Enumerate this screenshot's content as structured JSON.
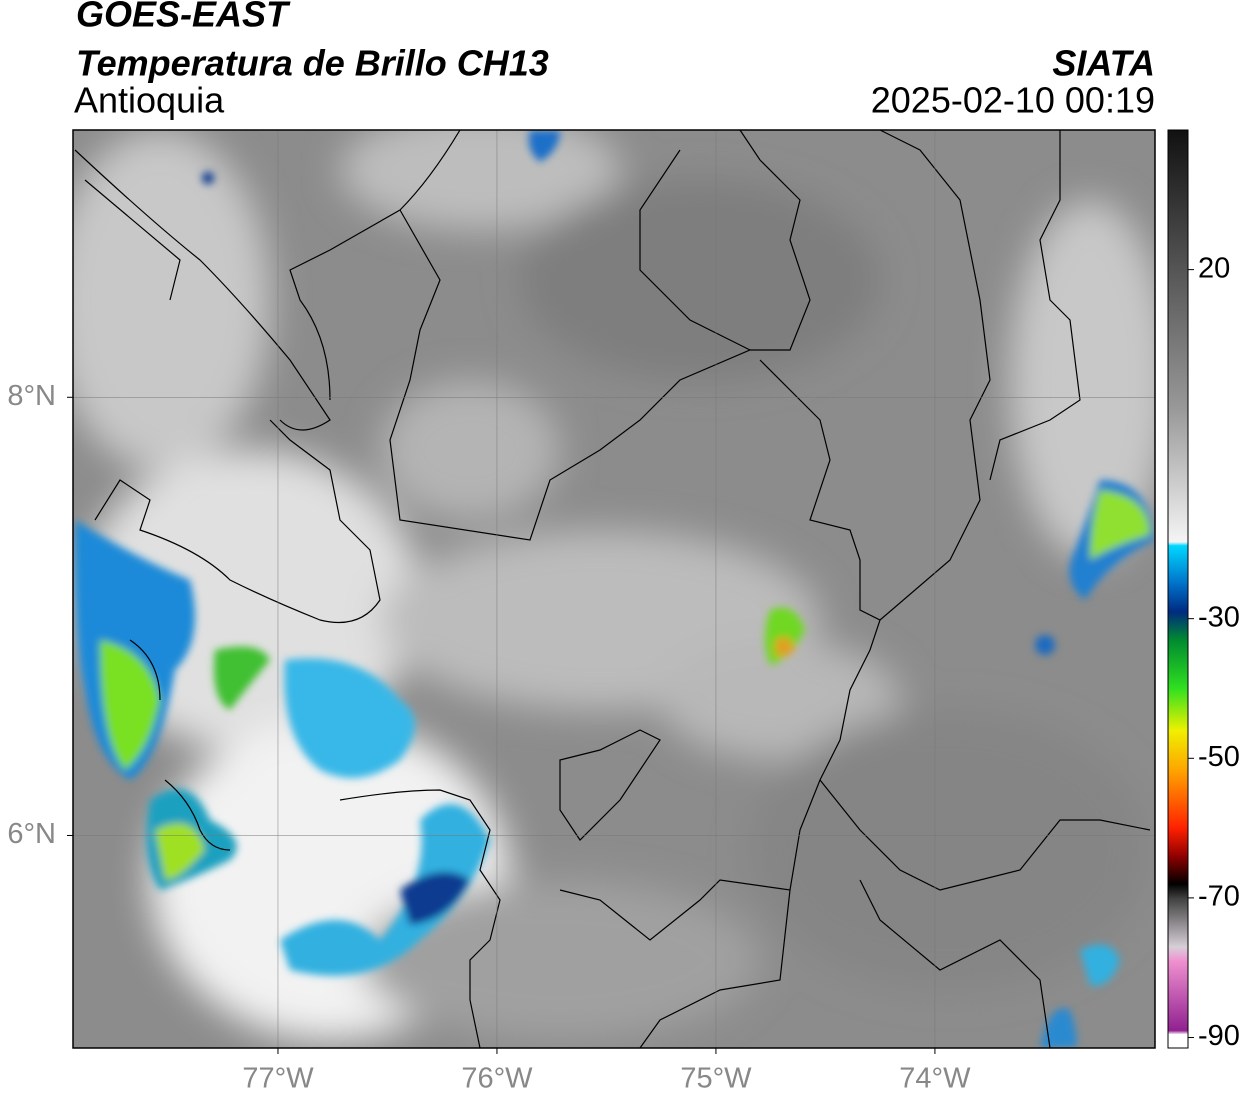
{
  "map": {
    "title": "GOES-EAST",
    "subtitle": "Temperatura de Brillo CH13",
    "region": "Antioquia",
    "source": "SIATA",
    "datetime": "2025-02-10 00:19",
    "xlim": [
      -77.936,
      -72.995
    ],
    "ylim": [
      5.03,
      9.22
    ],
    "xticks": [
      {
        "value": -77,
        "label": "77°W"
      },
      {
        "value": -76,
        "label": "76°W"
      },
      {
        "value": -75,
        "label": "75°W"
      },
      {
        "value": -74,
        "label": "74°W"
      }
    ],
    "yticks": [
      {
        "value": 8,
        "label": "8°N"
      },
      {
        "value": 6,
        "label": "6°N"
      }
    ],
    "grid": true,
    "colorbar": {
      "lim": [
        -91.5,
        40
      ],
      "ticks": [
        20,
        -30,
        -50,
        -70,
        -90
      ],
      "colormap": [
        [
          40,
          "#111111"
        ],
        [
          20,
          "#555555"
        ],
        [
          0,
          "#999999"
        ],
        [
          -19,
          "#f5f5f5"
        ],
        [
          -19.5,
          "#00d8ff"
        ],
        [
          -25,
          "#0070c8"
        ],
        [
          -29,
          "#002a80"
        ],
        [
          -33,
          "#008a30"
        ],
        [
          -40,
          "#30e020"
        ],
        [
          -46,
          "#f0f000"
        ],
        [
          -52,
          "#ffa000"
        ],
        [
          -60,
          "#ff2000"
        ],
        [
          -64,
          "#900000"
        ],
        [
          -68,
          "#000000"
        ],
        [
          -70,
          "#404040"
        ],
        [
          -77,
          "#d8d0d8"
        ],
        [
          -79,
          "#f090d0"
        ],
        [
          -89,
          "#902090"
        ],
        [
          -89.5,
          "#ffffff"
        ],
        [
          -91.5,
          "#ffffff"
        ]
      ]
    }
  }
}
